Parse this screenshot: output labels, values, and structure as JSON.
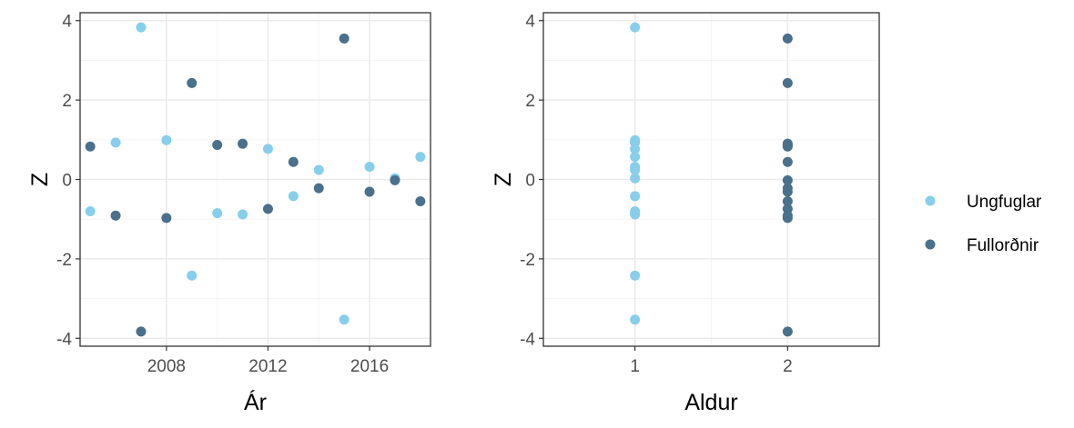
{
  "chart_data": [
    {
      "type": "scatter",
      "title": "",
      "xlabel": "Ár",
      "ylabel": "Z",
      "xlim": [
        2004.6,
        2018.4
      ],
      "ylim": [
        -4.2,
        4.2
      ],
      "xticks": [
        2008,
        2012,
        2016
      ],
      "yticks": [
        -4,
        -2,
        0,
        2,
        4
      ],
      "grid": true,
      "series": [
        {
          "name": "Ungfuglar",
          "color": "#87ceeb",
          "x": [
            2005,
            2006,
            2007,
            2008,
            2009,
            2010,
            2011,
            2012,
            2013,
            2014,
            2015,
            2016,
            2017,
            2018
          ],
          "y": [
            -0.8,
            0.93,
            3.83,
            0.99,
            -2.42,
            -0.85,
            -0.88,
            0.77,
            -0.42,
            0.24,
            -3.53,
            0.32,
            0.03,
            0.57
          ]
        },
        {
          "name": "Fullorðnir",
          "color": "#4a708b",
          "x": [
            2005,
            2006,
            2007,
            2008,
            2009,
            2010,
            2011,
            2012,
            2013,
            2014,
            2015,
            2016,
            2017,
            2018
          ],
          "y": [
            0.83,
            -0.91,
            -3.83,
            -0.97,
            2.43,
            0.87,
            0.9,
            -0.74,
            0.44,
            -0.22,
            3.55,
            -0.31,
            -0.02,
            -0.55
          ]
        }
      ]
    },
    {
      "type": "scatter",
      "title": "",
      "xlabel": "Aldur",
      "ylabel": "Z",
      "xlim": [
        0.4,
        2.6
      ],
      "ylim": [
        -4.2,
        4.2
      ],
      "xticks": [
        1,
        2
      ],
      "yticks": [
        -4,
        -2,
        0,
        2,
        4
      ],
      "grid": true,
      "series": [
        {
          "name": "Ungfuglar",
          "color": "#87ceeb",
          "x": [
            1,
            1,
            1,
            1,
            1,
            1,
            1,
            1,
            1,
            1,
            1,
            1,
            1,
            1
          ],
          "y": [
            -0.8,
            0.93,
            3.83,
            0.99,
            -2.42,
            -0.85,
            -0.88,
            0.77,
            -0.42,
            0.24,
            -3.53,
            0.32,
            0.03,
            0.57
          ]
        },
        {
          "name": "Fullorðnir",
          "color": "#4a708b",
          "x": [
            2,
            2,
            2,
            2,
            2,
            2,
            2,
            2,
            2,
            2,
            2,
            2,
            2,
            2
          ],
          "y": [
            0.83,
            -0.91,
            -3.83,
            -0.97,
            2.43,
            0.87,
            0.9,
            -0.74,
            0.44,
            -0.22,
            3.55,
            -0.31,
            -0.02,
            -0.55
          ]
        }
      ]
    }
  ],
  "legend": {
    "placement": "right",
    "items": [
      {
        "label": "Ungfuglar",
        "color": "#87ceeb"
      },
      {
        "label": "Fullorðnir",
        "color": "#4a708b"
      }
    ]
  }
}
